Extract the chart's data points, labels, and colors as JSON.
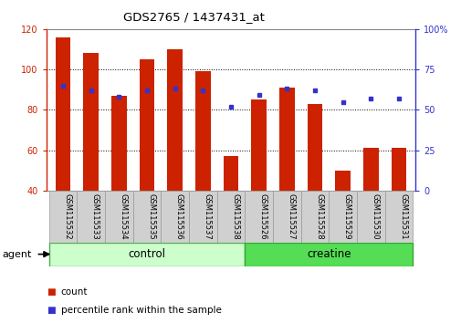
{
  "title": "GDS2765 / 1437431_at",
  "samples": [
    "GSM115532",
    "GSM115533",
    "GSM115534",
    "GSM115535",
    "GSM115536",
    "GSM115537",
    "GSM115538",
    "GSM115526",
    "GSM115527",
    "GSM115528",
    "GSM115529",
    "GSM115530",
    "GSM115531"
  ],
  "bar_values": [
    116,
    108,
    87,
    105,
    110,
    99,
    57,
    85,
    91,
    83,
    50,
    61,
    61
  ],
  "percentile_values": [
    65,
    62,
    58,
    62,
    63,
    62,
    52,
    59,
    63,
    62,
    55,
    57,
    57
  ],
  "bar_bottom": 40,
  "left_ylim": [
    40,
    120
  ],
  "left_yticks": [
    40,
    60,
    80,
    100,
    120
  ],
  "right_ylim": [
    0,
    100
  ],
  "right_yticks": [
    0,
    25,
    50,
    75,
    100
  ],
  "right_yticklabels": [
    "0",
    "25",
    "50",
    "75",
    "100%"
  ],
  "bar_color": "#CC2200",
  "dot_color": "#3333CC",
  "control_label": "control",
  "creatine_label": "creatine",
  "agent_label": "agent",
  "n_control": 7,
  "n_creatine": 6,
  "legend_count_label": "count",
  "legend_pct_label": "percentile rank within the sample",
  "bar_width": 0.55,
  "control_bg_light": "#ccffcc",
  "creatine_bg": "#55dd55",
  "xlabel_area_bg": "#d0d0d0"
}
